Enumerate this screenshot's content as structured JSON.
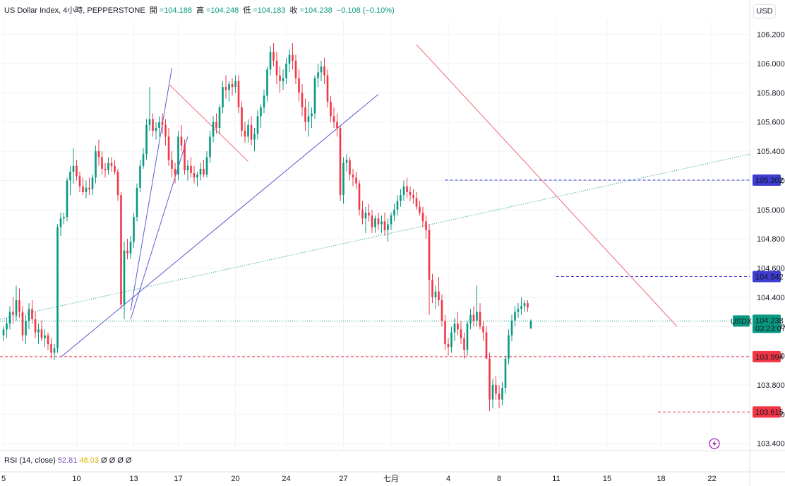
{
  "header": {
    "symbol": "US Dollar Index, 4小時, PEPPERSTONE",
    "open_label": "開",
    "open": "=104.188",
    "high_label": "高",
    "high": "=104.248",
    "low_label": "低",
    "low": "=104.183",
    "close_label": "收",
    "close": "=104.238",
    "change": "−0.108 (−0.10%)"
  },
  "currency_button": "USD",
  "rsi_header": {
    "name": "RSI (14, close)",
    "value1": "52.81",
    "value2": "48.03",
    "extra": "Ø Ø Ø Ø"
  },
  "colors": {
    "up": "#089981",
    "down": "#f23645",
    "trend_blue": "#5b5bd6",
    "trend_red": "#f06a78",
    "dotted_green": "#089981",
    "level_blue": "#3d3dd0",
    "level_red": "#f23645"
  },
  "icons": [
    "lightning-icon"
  ],
  "chart_data": {
    "type": "candlestick",
    "y_axis": {
      "range": [
        103.35,
        106.3
      ],
      "ticks": [
        "106.200",
        "106.000",
        "105.800",
        "105.600",
        "105.400",
        "105.200",
        "105.000",
        "104.800",
        "104.600",
        "104.400",
        "104.200",
        "104.000",
        "103.800",
        "103.600",
        "103.400"
      ]
    },
    "x_axis": {
      "ticks": [
        {
          "label": "5",
          "bar": 0
        },
        {
          "label": "10",
          "bar": 23
        },
        {
          "label": "13",
          "bar": 41
        },
        {
          "label": "17",
          "bar": 55
        },
        {
          "label": "20",
          "bar": 73
        },
        {
          "label": "24",
          "bar": 89
        },
        {
          "label": "27",
          "bar": 107
        },
        {
          "label": "七月",
          "bar": 122
        },
        {
          "label": "4",
          "bar": 140
        },
        {
          "label": "8",
          "bar": 156
        },
        {
          "label": "11",
          "bar": 174
        },
        {
          "label": "15",
          "bar": 190
        },
        {
          "label": "18",
          "bar": 207
        },
        {
          "label": "22",
          "bar": 223
        }
      ]
    },
    "ohlc": [
      [
        104.14,
        104.2,
        104.1,
        104.18
      ],
      [
        104.18,
        104.26,
        104.12,
        104.22
      ],
      [
        104.22,
        104.34,
        104.18,
        104.3
      ],
      [
        104.3,
        104.4,
        104.22,
        104.28
      ],
      [
        104.28,
        104.48,
        104.24,
        104.38
      ],
      [
        104.38,
        104.46,
        104.26,
        104.3
      ],
      [
        104.3,
        104.34,
        104.1,
        104.14
      ],
      [
        104.14,
        104.28,
        104.08,
        104.24
      ],
      [
        104.24,
        104.36,
        104.18,
        104.32
      ],
      [
        104.32,
        104.38,
        104.22,
        104.25
      ],
      [
        104.25,
        104.3,
        104.12,
        104.16
      ],
      [
        104.16,
        104.22,
        104.08,
        104.18
      ],
      [
        104.18,
        104.24,
        104.1,
        104.12
      ],
      [
        104.12,
        104.18,
        104.06,
        104.14
      ],
      [
        104.14,
        104.16,
        104.04,
        104.08
      ],
      [
        104.08,
        104.12,
        103.98,
        104.02
      ],
      [
        104.02,
        104.08,
        103.97,
        104.05
      ],
      [
        104.05,
        104.9,
        104.02,
        104.88
      ],
      [
        104.88,
        104.98,
        104.82,
        104.94
      ],
      [
        104.94,
        104.98,
        104.9,
        104.95
      ],
      [
        104.95,
        105.22,
        104.92,
        105.2
      ],
      [
        105.2,
        105.3,
        105.1,
        105.26
      ],
      [
        105.26,
        105.42,
        105.18,
        105.3
      ],
      [
        105.3,
        105.34,
        105.2,
        105.23
      ],
      [
        105.23,
        105.26,
        105.12,
        105.16
      ],
      [
        105.16,
        105.22,
        105.1,
        105.12
      ],
      [
        105.12,
        105.2,
        105.08,
        105.15
      ],
      [
        105.15,
        105.22,
        105.1,
        105.14
      ],
      [
        105.14,
        105.24,
        105.1,
        105.22
      ],
      [
        105.22,
        105.44,
        105.18,
        105.4
      ],
      [
        105.4,
        105.48,
        105.3,
        105.36
      ],
      [
        105.36,
        105.4,
        105.24,
        105.28
      ],
      [
        105.28,
        105.32,
        105.22,
        105.27
      ],
      [
        105.27,
        105.36,
        105.24,
        105.32
      ],
      [
        105.32,
        105.36,
        105.26,
        105.3
      ],
      [
        105.3,
        105.34,
        105.24,
        105.26
      ],
      [
        105.26,
        105.28,
        105.06,
        105.1
      ],
      [
        105.1,
        105.12,
        104.32,
        104.35
      ],
      [
        104.35,
        104.78,
        104.25,
        104.72
      ],
      [
        104.72,
        104.8,
        104.66,
        104.7
      ],
      [
        104.7,
        104.82,
        104.66,
        104.78
      ],
      [
        104.78,
        104.98,
        104.74,
        104.95
      ],
      [
        104.95,
        105.18,
        104.92,
        105.15
      ],
      [
        105.15,
        105.34,
        105.12,
        105.3
      ],
      [
        105.3,
        105.42,
        105.28,
        105.38
      ],
      [
        105.38,
        105.62,
        105.34,
        105.58
      ],
      [
        105.58,
        105.84,
        105.54,
        105.62
      ],
      [
        105.62,
        105.66,
        105.5,
        105.54
      ],
      [
        105.54,
        105.6,
        105.48,
        105.56
      ],
      [
        105.56,
        105.64,
        105.5,
        105.6
      ],
      [
        105.6,
        105.66,
        105.52,
        105.58
      ],
      [
        105.58,
        105.62,
        105.44,
        105.5
      ],
      [
        105.5,
        105.56,
        105.3,
        105.34
      ],
      [
        105.34,
        105.4,
        105.22,
        105.28
      ],
      [
        105.28,
        105.32,
        105.18,
        105.24
      ],
      [
        105.24,
        105.54,
        105.2,
        105.5
      ],
      [
        105.5,
        105.58,
        105.4,
        105.44
      ],
      [
        105.44,
        105.48,
        105.24,
        105.27
      ],
      [
        105.27,
        105.34,
        105.2,
        105.3
      ],
      [
        105.3,
        105.36,
        105.22,
        105.25
      ],
      [
        105.25,
        105.3,
        105.18,
        105.22
      ],
      [
        105.22,
        105.26,
        105.16,
        105.24
      ],
      [
        105.24,
        105.32,
        105.2,
        105.28
      ],
      [
        105.28,
        105.34,
        105.22,
        105.24
      ],
      [
        105.24,
        105.4,
        105.22,
        105.36
      ],
      [
        105.36,
        105.54,
        105.32,
        105.5
      ],
      [
        105.5,
        105.64,
        105.46,
        105.6
      ],
      [
        105.6,
        105.66,
        105.52,
        105.56
      ],
      [
        105.56,
        105.72,
        105.52,
        105.7
      ],
      [
        105.7,
        105.88,
        105.66,
        105.84
      ],
      [
        105.84,
        105.92,
        105.76,
        105.82
      ],
      [
        105.82,
        105.88,
        105.74,
        105.86
      ],
      [
        105.86,
        105.9,
        105.78,
        105.84
      ],
      [
        105.84,
        105.92,
        105.8,
        105.88
      ],
      [
        105.88,
        105.92,
        105.66,
        105.7
      ],
      [
        105.7,
        105.74,
        105.5,
        105.54
      ],
      [
        105.54,
        105.6,
        105.46,
        105.5
      ],
      [
        105.5,
        105.62,
        105.46,
        105.58
      ],
      [
        105.58,
        105.64,
        105.44,
        105.48
      ],
      [
        105.48,
        105.56,
        105.4,
        105.52
      ],
      [
        105.52,
        105.68,
        105.48,
        105.64
      ],
      [
        105.64,
        105.72,
        105.56,
        105.7
      ],
      [
        105.7,
        105.82,
        105.66,
        105.78
      ],
      [
        105.78,
        105.98,
        105.74,
        105.96
      ],
      [
        105.96,
        106.12,
        105.92,
        106.08
      ],
      [
        106.08,
        106.14,
        105.98,
        106.02
      ],
      [
        106.02,
        106.08,
        105.86,
        105.92
      ],
      [
        105.92,
        105.98,
        105.8,
        105.88
      ],
      [
        105.88,
        105.96,
        105.82,
        105.9
      ],
      [
        105.9,
        106.04,
        105.86,
        106.0
      ],
      [
        106.0,
        106.1,
        105.94,
        106.06
      ],
      [
        106.06,
        106.14,
        105.96,
        106.02
      ],
      [
        106.02,
        106.06,
        105.86,
        105.9
      ],
      [
        105.9,
        105.96,
        105.74,
        105.8
      ],
      [
        105.8,
        105.86,
        105.64,
        105.7
      ],
      [
        105.7,
        105.76,
        105.54,
        105.6
      ],
      [
        105.6,
        105.74,
        105.5,
        105.64
      ],
      [
        105.64,
        105.7,
        105.56,
        105.66
      ],
      [
        105.66,
        105.92,
        105.62,
        105.9
      ],
      [
        105.9,
        106.0,
        105.84,
        105.94
      ],
      [
        105.94,
        106.02,
        105.88,
        105.98
      ],
      [
        105.98,
        106.04,
        105.86,
        105.92
      ],
      [
        105.92,
        105.96,
        105.7,
        105.74
      ],
      [
        105.74,
        105.78,
        105.6,
        105.64
      ],
      [
        105.64,
        105.7,
        105.56,
        105.6
      ],
      [
        105.6,
        105.66,
        105.5,
        105.56
      ],
      [
        105.56,
        105.58,
        105.06,
        105.1
      ],
      [
        105.1,
        105.36,
        105.04,
        105.32
      ],
      [
        105.32,
        105.38,
        105.26,
        105.34
      ],
      [
        105.34,
        105.36,
        105.2,
        105.24
      ],
      [
        105.24,
        105.28,
        105.16,
        105.22
      ],
      [
        105.22,
        105.26,
        105.14,
        105.18
      ],
      [
        105.18,
        105.2,
        104.96,
        105.0
      ],
      [
        105.0,
        105.06,
        104.9,
        104.94
      ],
      [
        104.94,
        105.02,
        104.84,
        104.98
      ],
      [
        104.98,
        105.04,
        104.92,
        104.96
      ],
      [
        104.96,
        105.0,
        104.84,
        104.88
      ],
      [
        104.88,
        104.96,
        104.84,
        104.94
      ],
      [
        104.94,
        104.98,
        104.86,
        104.9
      ],
      [
        104.9,
        104.96,
        104.84,
        104.92
      ],
      [
        104.92,
        104.98,
        104.82,
        104.86
      ],
      [
        104.86,
        104.94,
        104.78,
        104.9
      ],
      [
        104.9,
        104.98,
        104.86,
        104.96
      ],
      [
        104.96,
        105.04,
        104.92,
        105.0
      ],
      [
        105.0,
        105.1,
        104.96,
        105.06
      ],
      [
        105.06,
        105.14,
        105.02,
        105.1
      ],
      [
        105.1,
        105.2,
        105.06,
        105.16
      ],
      [
        105.16,
        105.22,
        105.08,
        105.12
      ],
      [
        105.12,
        105.16,
        105.06,
        105.1
      ],
      [
        105.1,
        105.14,
        105.04,
        105.08
      ],
      [
        105.08,
        105.12,
        105.0,
        105.02
      ],
      [
        105.02,
        105.06,
        104.96,
        104.98
      ],
      [
        104.98,
        105.02,
        104.88,
        104.92
      ],
      [
        104.92,
        104.96,
        104.8,
        104.86
      ],
      [
        104.86,
        104.9,
        104.28,
        104.52
      ],
      [
        104.52,
        104.56,
        104.36,
        104.4
      ],
      [
        104.4,
        104.48,
        104.32,
        104.44
      ],
      [
        104.44,
        104.54,
        104.34,
        104.38
      ],
      [
        104.38,
        104.42,
        104.2,
        104.24
      ],
      [
        104.24,
        104.28,
        104.04,
        104.08
      ],
      [
        104.08,
        104.12,
        104.0,
        104.06
      ],
      [
        104.06,
        104.2,
        104.02,
        104.16
      ],
      [
        104.16,
        104.26,
        104.1,
        104.22
      ],
      [
        104.22,
        104.3,
        104.14,
        104.18
      ],
      [
        104.18,
        104.24,
        104.08,
        104.12
      ],
      [
        104.12,
        104.16,
        103.98,
        104.04
      ],
      [
        104.04,
        104.24,
        104.0,
        104.22
      ],
      [
        104.22,
        104.32,
        104.18,
        104.28
      ],
      [
        104.28,
        104.34,
        104.2,
        104.24
      ],
      [
        104.24,
        104.48,
        104.2,
        104.3
      ],
      [
        104.3,
        104.36,
        104.18,
        104.2
      ],
      [
        104.2,
        104.24,
        104.1,
        104.16
      ],
      [
        104.16,
        104.2,
        104.0,
        103.98
      ],
      [
        103.98,
        104.02,
        103.62,
        103.7
      ],
      [
        103.7,
        103.84,
        103.64,
        103.8
      ],
      [
        103.8,
        103.86,
        103.7,
        103.74
      ],
      [
        103.74,
        103.8,
        103.64,
        103.7
      ],
      [
        103.7,
        103.82,
        103.66,
        103.78
      ],
      [
        103.78,
        104.0,
        103.74,
        103.98
      ],
      [
        103.98,
        104.18,
        103.94,
        104.14
      ],
      [
        104.14,
        104.28,
        104.1,
        104.24
      ],
      [
        104.24,
        104.34,
        104.2,
        104.3
      ],
      [
        104.3,
        104.36,
        104.26,
        104.32
      ],
      [
        104.32,
        104.4,
        104.28,
        104.34
      ],
      [
        104.34,
        104.38,
        104.3,
        104.36
      ],
      [
        104.36,
        104.38,
        104.3,
        104.33
      ],
      [
        104.188,
        104.248,
        104.183,
        104.238
      ]
    ],
    "price_labels": [
      {
        "value": 105.202,
        "label": "105.202",
        "color": "#3d3dd0"
      },
      {
        "value": 104.542,
        "label": "104.542",
        "color": "#3d3dd0"
      },
      {
        "value": 104.238,
        "label": "104.238",
        "sub": "03:23:07",
        "tag": "USDX",
        "color": "#089981"
      },
      {
        "value": 103.994,
        "label": "103.994",
        "color": "#f23645"
      },
      {
        "value": 103.615,
        "label": "103.615",
        "color": "#f23645"
      }
    ]
  }
}
